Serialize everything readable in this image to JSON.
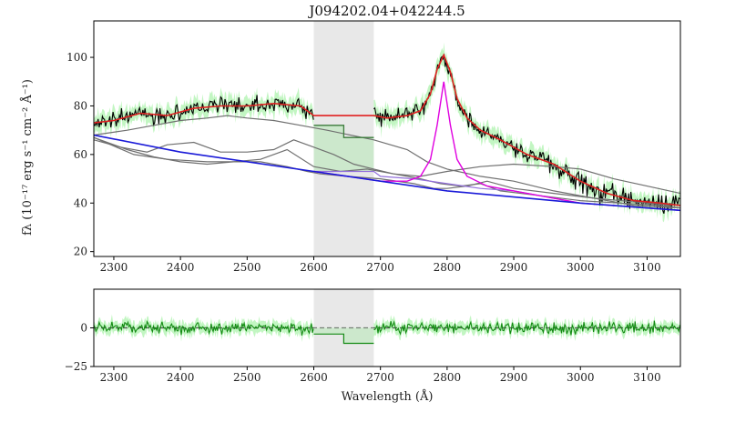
{
  "chart_data": [
    {
      "type": "line",
      "title": "J094202.04+042244.5",
      "ylabel": "fλ (10⁻¹⁷ erg s⁻¹ cm⁻² Å⁻¹)",
      "xlim": [
        2270,
        3150
      ],
      "ylim": [
        18,
        115
      ],
      "masked_region": [
        2600,
        2690
      ],
      "grid": false,
      "x_ticks": [
        2300,
        2400,
        2500,
        2600,
        2700,
        2800,
        2900,
        3000,
        3100
      ],
      "y_ticks": [
        20,
        40,
        60,
        80,
        100
      ],
      "colors": {
        "data": "#000000",
        "error": "#90ee90",
        "model": "#e02020",
        "continuum": "#1a1ad8",
        "mgii": "#e000e0",
        "components": "#707070",
        "continuum_plus_fe": "#9370db",
        "masked_fill": "#e8e8e8"
      },
      "series": [
        {
          "role": "model",
          "x": [
            2270,
            2300,
            2340,
            2380,
            2420,
            2460,
            2500,
            2540,
            2580,
            2600,
            2690,
            2710,
            2740,
            2760,
            2775,
            2785,
            2795,
            2805,
            2815,
            2830,
            2850,
            2880,
            2920,
            2960,
            3000,
            3040,
            3080,
            3120,
            3150
          ],
          "values": [
            73,
            74,
            77,
            76,
            79,
            80,
            80,
            81,
            80,
            76,
            76,
            75,
            76,
            78,
            85,
            95,
            101,
            94,
            83,
            75,
            70,
            66,
            60,
            56,
            49,
            44,
            41,
            40,
            39
          ]
        },
        {
          "role": "continuum",
          "x": [
            2270,
            2400,
            2600,
            2800,
            3000,
            3150
          ],
          "values": [
            68,
            61,
            53,
            45,
            40,
            37
          ]
        },
        {
          "role": "mgii",
          "x": [
            2600,
            2700,
            2740,
            2760,
            2775,
            2785,
            2795,
            2805,
            2815,
            2830,
            2860,
            2900,
            3000,
            3150
          ],
          "values": [
            53,
            49,
            49,
            51,
            58,
            72,
            90,
            72,
            58,
            51,
            47,
            45,
            40,
            37
          ]
        },
        {
          "role": "continuum_plus_fe",
          "x": [
            2600,
            2650,
            2690,
            2700,
            2750,
            2800,
            2850,
            2900,
            3000,
            3150
          ],
          "values": [
            53,
            53,
            53,
            51,
            50,
            48,
            46,
            45,
            40,
            37
          ]
        },
        {
          "role": "component",
          "x": [
            2270,
            2320,
            2360,
            2400,
            2440,
            2470,
            2500,
            2540,
            2580,
            2620,
            2690,
            2740,
            2770,
            2800,
            2850,
            2900,
            2960,
            3020,
            3080,
            3150
          ],
          "values": [
            68,
            70,
            72,
            74,
            75,
            76,
            75,
            74,
            72,
            70,
            66,
            62,
            57,
            54,
            51,
            49,
            45,
            42,
            39,
            38
          ]
        },
        {
          "role": "component",
          "x": [
            2270,
            2310,
            2350,
            2380,
            2420,
            2460,
            2500,
            2540,
            2570,
            2600,
            2630,
            2660,
            2690,
            2720,
            2760,
            2800,
            2850,
            2900,
            2960,
            3000,
            3050,
            3100,
            3150
          ],
          "values": [
            66,
            63,
            61,
            64,
            65,
            61,
            61,
            62,
            66,
            63,
            60,
            56,
            54,
            52,
            51,
            53,
            55,
            56,
            55,
            54,
            50,
            47,
            44
          ]
        },
        {
          "role": "component",
          "x": [
            2270,
            2320,
            2360,
            2400,
            2440,
            2480,
            2520,
            2560,
            2590,
            2610,
            2650,
            2700,
            2750,
            2780,
            2800,
            2830,
            2860,
            2900,
            2960,
            3020,
            3100,
            3150
          ],
          "values": [
            67,
            62,
            59,
            57,
            56,
            57,
            57,
            55,
            53,
            52,
            51,
            50,
            48,
            46,
            46,
            47,
            49,
            46,
            44,
            42,
            40,
            39
          ]
        },
        {
          "role": "component",
          "x": [
            2270,
            2330,
            2380,
            2440,
            2480,
            2520,
            2560,
            2600,
            2640,
            2680,
            2720,
            2760,
            2790,
            2820,
            2850,
            2880,
            2940,
            3000,
            3060,
            3120,
            3150
          ],
          "values": [
            67,
            60,
            58,
            57,
            57,
            58,
            62,
            55,
            53,
            54,
            52,
            50,
            48,
            47,
            48,
            45,
            43,
            41,
            40,
            39,
            38
          ]
        },
        {
          "role": "masked_fe_step",
          "x": [
            2600,
            2645,
            2645,
            2690
          ],
          "values": [
            72,
            72,
            67,
            67
          ]
        }
      ],
      "data_seed": 17
    },
    {
      "type": "line",
      "xlabel": "Wavelength (Å)",
      "xlim": [
        2270,
        3150
      ],
      "ylim": [
        -25,
        25
      ],
      "masked_region": [
        2600,
        2690
      ],
      "x_ticks": [
        2300,
        2400,
        2500,
        2600,
        2700,
        2800,
        2900,
        3000,
        3100
      ],
      "y_ticks": [
        -25,
        0
      ],
      "zero_line": 0,
      "colors": {
        "residual": "#138a13",
        "residual_error": "#90ee90",
        "masked_fill": "#e8e8e8"
      },
      "series": [
        {
          "role": "masked_residual_step",
          "x": [
            2600,
            2645,
            2645,
            2690
          ],
          "values": [
            -4,
            -4,
            -10,
            -10
          ]
        }
      ],
      "data_seed": 29
    }
  ]
}
